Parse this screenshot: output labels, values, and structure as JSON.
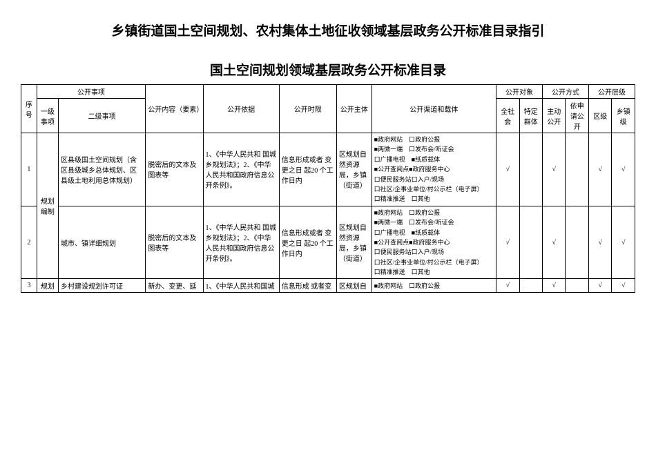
{
  "title1": "乡镇街道国土空间规划、农村集体土地征收领域基层政务公开标准目录指引",
  "title2": "国土空间规划领域基层政务公开标准目录",
  "headers": {
    "seq": "序号",
    "matter": "公开事项",
    "cat1": "一级事项",
    "cat2": "二级事项",
    "content": "公开内容（要素）",
    "basis": "公开依据",
    "time": "公开时限",
    "subject": "公开主体",
    "channel": "公开渠道和载体",
    "target": "公开对象",
    "all": "全社会",
    "specific": "特定群体",
    "method": "公开方式",
    "active": "主动公开",
    "apply": "依申请公开",
    "level": "公开层级",
    "district": "区级",
    "town": "乡镇级"
  },
  "rows": [
    {
      "seq": "1",
      "cat1": "规划编制",
      "cat2": "区县级国土空间规划（含区县级城乡总体规划、区县级土地利用总体规划）",
      "content": "脱密后的文本及图表等",
      "basis": "1、《中华人民共和 国城乡规划法》；2、《中华人民共和国政府信息公开条例》。",
      "time": "信息形成或者 变更之日 起20 个工作日内",
      "subject": "区规划自然资源局，乡镇（街道）",
      "channel": "■政府网站　口政府公报\n■两微一端　口发布会/听证会\n口广播电视　■纸质载体\n■公开查阅点■政府服务中心\n口便民服务站口入户/现场\n口社区/企事业单位/村公示栏（电子屏）\n口精准推送　口其他",
      "all": "√",
      "specific": "",
      "active": "√",
      "apply": "",
      "district": "√",
      "town": "√"
    },
    {
      "seq": "2",
      "cat1": "",
      "cat2": "城市、镇详细规划",
      "content": "脱密后的文本及图表等",
      "basis": "1、《中华人民共和 国城乡规划法》；2、《中华人民共和国政府信息公开条例》。",
      "time": "信息形成或者 变更之日 起20 个工作日内",
      "subject": "区规划自然资源局，乡镇（街道）",
      "channel": "■政府网站　口政府公报\n■两微一端　口发布会/听证会\n口广播电视　■纸质载体\n■公开查阅点■政府服务中心\n口便民服务站口入户/现场\n口社区/企事业单位/村公示栏（电子屏）\n口精准推送　口其他",
      "all": "√",
      "specific": "",
      "active": "√",
      "apply": "",
      "district": "√",
      "town": "√"
    },
    {
      "seq": "3",
      "cat1": "规划",
      "cat2": "乡村建设规划许可证",
      "content": "新办、变更、延",
      "basis": "1、《中华人民共和国城",
      "time": "信息形成 或者变",
      "subject": "区规划自",
      "channel": "■政府网站　口政府公报",
      "all": "√",
      "specific": "",
      "active": "√",
      "apply": "",
      "district": "√",
      "town": "√"
    }
  ]
}
